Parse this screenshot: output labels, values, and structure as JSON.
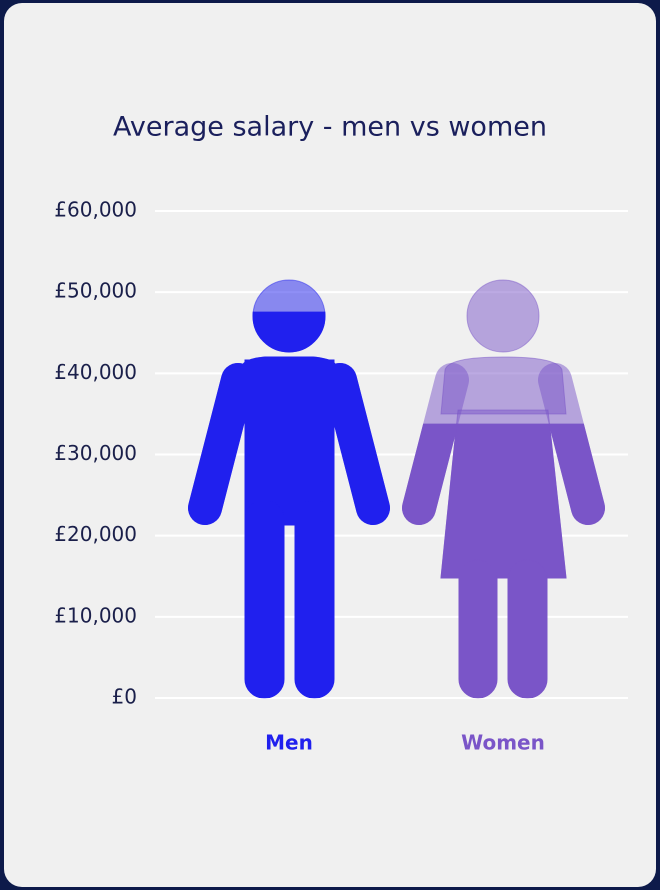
{
  "chart_data": {
    "type": "pictogram",
    "title": "Average salary - men vs women",
    "categories": [
      "Men",
      "Women"
    ],
    "values": [
      47600,
      33800
    ],
    "colors": [
      "#2020ee",
      "#7a55c8"
    ],
    "ylim": [
      0,
      60000
    ],
    "yticks": [
      {
        "value": 0,
        "label": "£0"
      },
      {
        "value": 10000,
        "label": "£10,000"
      },
      {
        "value": 20000,
        "label": "£20,000"
      },
      {
        "value": 30000,
        "label": "£30,000"
      },
      {
        "value": 40000,
        "label": "£40,000"
      },
      {
        "value": 50000,
        "label": "£50,000"
      },
      {
        "value": 60000,
        "label": "£60,000"
      }
    ],
    "grid": true
  }
}
